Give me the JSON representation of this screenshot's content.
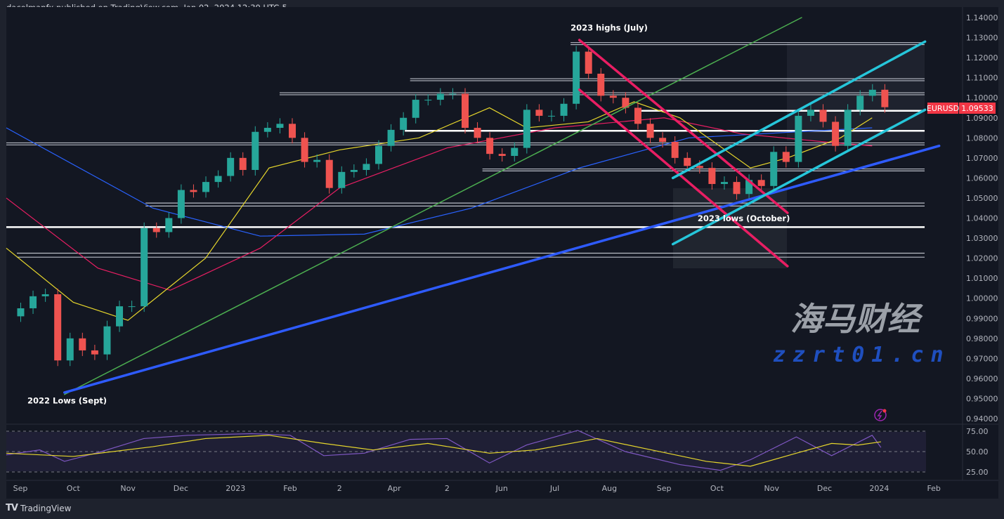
{
  "header": {
    "text": "dacolmanfx published on TradingView.com, Jan 02, 2024 12:30 UTC-5"
  },
  "footer": {
    "logo_mark": "TV",
    "brand": "TradingView"
  },
  "watermark": {
    "line1": "海马财经",
    "line2": "zzrt01.cn"
  },
  "colors": {
    "bg": "#131722",
    "up": "#26a69a",
    "down": "#ef5350",
    "ma_fast": "#e6d62c",
    "ma_mid": "#e91e63",
    "ma_slow": "#2962ff",
    "green_trend": "#4caf50",
    "blue_trend": "#2e5bff",
    "channel_down": "#e91e63",
    "channel_up": "#26c6da",
    "rsi": "#7e57c2",
    "rsi_signal": "#e6d62c",
    "price_tag": "#f23645"
  },
  "chart_data": {
    "type": "candlestick",
    "symbol": "EURUSD",
    "last_price": "1.09533",
    "ylim": [
      0.94,
      1.14
    ],
    "y_ticks": [
      "1.14000",
      "1.13000",
      "1.12000",
      "1.11000",
      "1.10000",
      "1.09000",
      "1.08000",
      "1.07000",
      "1.06000",
      "1.05000",
      "1.04000",
      "1.03000",
      "1.02000",
      "1.01000",
      "1.00000",
      "0.99000",
      "0.98000",
      "0.97000",
      "0.96000",
      "0.95000",
      "0.94000"
    ],
    "x_ticks": [
      {
        "label": "Sep",
        "date": "2022-09-01"
      },
      {
        "label": "Oct",
        "date": "2022-10-01"
      },
      {
        "label": "Nov",
        "date": "2022-11-01"
      },
      {
        "label": "Dec",
        "date": "2022-12-01"
      },
      {
        "label": "2023",
        "date": "2023-01-01"
      },
      {
        "label": "Feb",
        "date": "2023-02-01"
      },
      {
        "label": "2",
        "date": "2023-03-01"
      },
      {
        "label": "Apr",
        "date": "2023-04-01"
      },
      {
        "label": "2",
        "date": "2023-05-01"
      },
      {
        "label": "Jun",
        "date": "2023-06-01"
      },
      {
        "label": "Jul",
        "date": "2023-07-01"
      },
      {
        "label": "Aug",
        "date": "2023-08-01"
      },
      {
        "label": "Sep",
        "date": "2023-09-01"
      },
      {
        "label": "Oct",
        "date": "2023-10-01"
      },
      {
        "label": "Nov",
        "date": "2023-11-01"
      },
      {
        "label": "Dec",
        "date": "2023-12-01"
      },
      {
        "label": "2024",
        "date": "2024-01-01"
      },
      {
        "label": "Feb",
        "date": "2024-02-01"
      }
    ],
    "weekly_closes": [
      [
        "2022-08-29",
        0.995
      ],
      [
        "2022-09-05",
        1.001
      ],
      [
        "2022-09-12",
        1.002
      ],
      [
        "2022-09-19",
        0.969
      ],
      [
        "2022-09-26",
        0.98
      ],
      [
        "2022-10-03",
        0.974
      ],
      [
        "2022-10-10",
        0.972
      ],
      [
        "2022-10-17",
        0.986
      ],
      [
        "2022-10-24",
        0.996
      ],
      [
        "2022-10-31",
        0.996
      ],
      [
        "2022-11-07",
        1.035
      ],
      [
        "2022-11-14",
        1.033
      ],
      [
        "2022-11-21",
        1.04
      ],
      [
        "2022-11-28",
        1.054
      ],
      [
        "2022-12-05",
        1.053
      ],
      [
        "2022-12-12",
        1.058
      ],
      [
        "2022-12-19",
        1.061
      ],
      [
        "2022-12-26",
        1.07
      ],
      [
        "2023-01-02",
        1.064
      ],
      [
        "2023-01-09",
        1.083
      ],
      [
        "2023-01-16",
        1.085
      ],
      [
        "2023-01-23",
        1.087
      ],
      [
        "2023-01-30",
        1.08
      ],
      [
        "2023-02-06",
        1.068
      ],
      [
        "2023-02-13",
        1.069
      ],
      [
        "2023-02-20",
        1.055
      ],
      [
        "2023-02-27",
        1.063
      ],
      [
        "2023-03-06",
        1.064
      ],
      [
        "2023-03-13",
        1.067
      ],
      [
        "2023-03-20",
        1.076
      ],
      [
        "2023-03-27",
        1.084
      ],
      [
        "2023-04-03",
        1.09
      ],
      [
        "2023-04-10",
        1.099
      ],
      [
        "2023-04-17",
        1.099
      ],
      [
        "2023-04-24",
        1.102
      ],
      [
        "2023-05-01",
        1.102
      ],
      [
        "2023-05-08",
        1.085
      ],
      [
        "2023-05-15",
        1.08
      ],
      [
        "2023-05-22",
        1.072
      ],
      [
        "2023-05-29",
        1.071
      ],
      [
        "2023-06-05",
        1.075
      ],
      [
        "2023-06-12",
        1.094
      ],
      [
        "2023-06-19",
        1.091
      ],
      [
        "2023-06-26",
        1.091
      ],
      [
        "2023-07-03",
        1.097
      ],
      [
        "2023-07-10",
        1.123
      ],
      [
        "2023-07-17",
        1.112
      ],
      [
        "2023-07-24",
        1.101
      ],
      [
        "2023-07-31",
        1.1
      ],
      [
        "2023-08-07",
        1.095
      ],
      [
        "2023-08-14",
        1.087
      ],
      [
        "2023-08-21",
        1.08
      ],
      [
        "2023-08-28",
        1.078
      ],
      [
        "2023-09-04",
        1.07
      ],
      [
        "2023-09-11",
        1.066
      ],
      [
        "2023-09-18",
        1.065
      ],
      [
        "2023-09-25",
        1.057
      ],
      [
        "2023-10-02",
        1.058
      ],
      [
        "2023-10-09",
        1.052
      ],
      [
        "2023-10-16",
        1.059
      ],
      [
        "2023-10-23",
        1.056
      ],
      [
        "2023-10-30",
        1.073
      ],
      [
        "2023-11-06",
        1.068
      ],
      [
        "2023-11-13",
        1.091
      ],
      [
        "2023-11-20",
        1.094
      ],
      [
        "2023-11-27",
        1.088
      ],
      [
        "2023-12-04",
        1.076
      ],
      [
        "2023-12-11",
        1.094
      ],
      [
        "2023-12-18",
        1.101
      ],
      [
        "2023-12-25",
        1.104
      ],
      [
        "2024-01-01",
        1.0953
      ]
    ],
    "moving_averages": [
      {
        "color_key": "ma_slow",
        "points": [
          [
            "2022-08-24",
            1.085
          ],
          [
            "2022-11-15",
            1.045
          ],
          [
            "2023-01-15",
            1.031
          ],
          [
            "2023-03-15",
            1.032
          ],
          [
            "2023-05-15",
            1.045
          ],
          [
            "2023-07-15",
            1.065
          ],
          [
            "2023-09-15",
            1.08
          ],
          [
            "2023-11-15",
            1.083
          ],
          [
            "2023-12-28",
            1.085
          ]
        ]
      },
      {
        "color_key": "ma_mid",
        "points": [
          [
            "2022-08-24",
            1.05
          ],
          [
            "2022-10-15",
            1.015
          ],
          [
            "2022-11-25",
            1.004
          ],
          [
            "2023-01-15",
            1.025
          ],
          [
            "2023-03-01",
            1.055
          ],
          [
            "2023-05-01",
            1.075
          ],
          [
            "2023-07-01",
            1.085
          ],
          [
            "2023-09-01",
            1.09
          ],
          [
            "2023-10-15",
            1.082
          ],
          [
            "2023-12-01",
            1.078
          ],
          [
            "2023-12-28",
            1.076
          ]
        ]
      },
      {
        "color_key": "ma_fast",
        "points": [
          [
            "2022-08-24",
            1.025
          ],
          [
            "2022-10-01",
            0.998
          ],
          [
            "2022-11-01",
            0.989
          ],
          [
            "2022-12-15",
            1.02
          ],
          [
            "2023-01-20",
            1.065
          ],
          [
            "2023-03-01",
            1.074
          ],
          [
            "2023-04-15",
            1.08
          ],
          [
            "2023-05-25",
            1.095
          ],
          [
            "2023-06-15",
            1.085
          ],
          [
            "2023-07-20",
            1.088
          ],
          [
            "2023-08-15",
            1.098
          ],
          [
            "2023-09-10",
            1.09
          ],
          [
            "2023-10-20",
            1.065
          ],
          [
            "2023-11-10",
            1.07
          ],
          [
            "2023-12-10",
            1.08
          ],
          [
            "2023-12-28",
            1.09
          ]
        ]
      }
    ],
    "trendlines": [
      {
        "color_key": "green_trend",
        "from": [
          "2022-09-26",
          0.952
        ],
        "to": [
          "2023-11-18",
          1.14
        ]
      },
      {
        "color_key": "blue_trend",
        "from": [
          "2022-09-26",
          0.953
        ],
        "to": [
          "2024-02-04",
          1.076
        ]
      },
      {
        "color_key": "channel_down",
        "from": [
          "2023-07-15",
          1.1288
        ],
        "to": [
          "2023-11-10",
          1.0426
        ]
      },
      {
        "color_key": "channel_down",
        "from": [
          "2023-07-15",
          1.104
        ],
        "to": [
          "2023-11-10",
          1.016
        ]
      },
      {
        "color_key": "channel_up",
        "from": [
          "2023-09-06",
          1.06
        ],
        "to": [
          "2024-01-27",
          1.128
        ]
      },
      {
        "color_key": "channel_up",
        "from": [
          "2023-09-06",
          1.027
        ],
        "to": [
          "2024-01-27",
          1.094
        ]
      }
    ],
    "horizontal_levels": [
      {
        "from": "2023-07-10",
        "prices": [
          1.1265,
          1.1275
        ]
      },
      {
        "from": "2023-04-10",
        "prices": [
          1.1085,
          1.1095
        ]
      },
      {
        "from": "2023-01-26",
        "prices": [
          1.1015,
          1.1025
        ]
      },
      {
        "from": "2023-08-19",
        "prices": [
          1.0935
        ],
        "bold": true
      },
      {
        "from": "2023-04-07",
        "prices": [
          1.0835
        ],
        "bold": true
      },
      {
        "from": "2022-08-24",
        "prices": [
          1.0765,
          1.0775
        ]
      },
      {
        "from": "2023-05-21",
        "prices": [
          1.0635,
          1.0645
        ]
      },
      {
        "from": "2022-11-11",
        "prices": [
          1.046,
          1.0475
        ]
      },
      {
        "from": "2022-08-24",
        "prices": [
          1.0355
        ],
        "bold": true
      },
      {
        "from": "2022-08-30",
        "prices": [
          1.0205,
          1.0225
        ]
      }
    ],
    "annotations": [
      {
        "text": "2023 highs (July)",
        "date": "2023-07-10",
        "price": 1.1335
      },
      {
        "text": "2023 lows (October)",
        "date": "2023-09-20",
        "price": 1.0385
      },
      {
        "text": "2022 Lows (Sept)",
        "date": "2022-09-05",
        "price": 0.9475
      }
    ],
    "rsi": {
      "y_ticks": [
        "75.00",
        "50.00",
        "25.00"
      ],
      "values": [
        [
          "2022-08-24",
          46
        ],
        [
          "2022-09-12",
          52
        ],
        [
          "2022-09-26",
          38
        ],
        [
          "2022-10-17",
          50
        ],
        [
          "2022-11-10",
          66
        ],
        [
          "2022-12-05",
          70
        ],
        [
          "2023-01-10",
          72
        ],
        [
          "2023-02-01",
          70
        ],
        [
          "2023-02-20",
          45
        ],
        [
          "2023-03-15",
          48
        ],
        [
          "2023-04-10",
          65
        ],
        [
          "2023-05-01",
          66
        ],
        [
          "2023-05-25",
          36
        ],
        [
          "2023-06-15",
          58
        ],
        [
          "2023-07-14",
          76
        ],
        [
          "2023-08-10",
          50
        ],
        [
          "2023-09-10",
          34
        ],
        [
          "2023-10-03",
          27
        ],
        [
          "2023-10-20",
          40
        ],
        [
          "2023-11-15",
          68
        ],
        [
          "2023-12-05",
          45
        ],
        [
          "2023-12-28",
          70
        ],
        [
          "2024-01-02",
          55
        ]
      ],
      "signal": [
        [
          "2022-08-24",
          48
        ],
        [
          "2022-10-01",
          44
        ],
        [
          "2022-11-15",
          56
        ],
        [
          "2022-12-15",
          66
        ],
        [
          "2023-01-20",
          70
        ],
        [
          "2023-02-20",
          60
        ],
        [
          "2023-03-20",
          52
        ],
        [
          "2023-04-20",
          60
        ],
        [
          "2023-05-25",
          48
        ],
        [
          "2023-06-20",
          52
        ],
        [
          "2023-07-25",
          66
        ],
        [
          "2023-08-25",
          52
        ],
        [
          "2023-09-25",
          38
        ],
        [
          "2023-10-20",
          32
        ],
        [
          "2023-11-15",
          48
        ],
        [
          "2023-12-05",
          60
        ],
        [
          "2023-12-20",
          58
        ],
        [
          "2024-01-02",
          62
        ]
      ]
    }
  }
}
